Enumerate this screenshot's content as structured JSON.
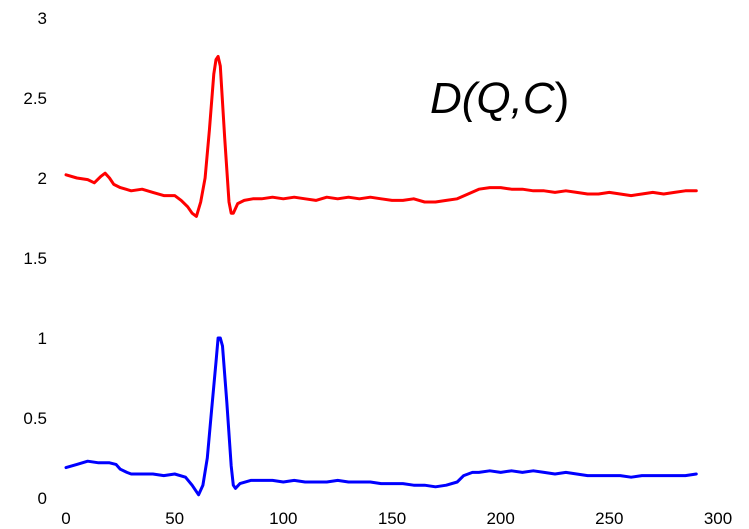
{
  "chart_data": {
    "type": "line",
    "title": "",
    "xlabel": "",
    "ylabel": "",
    "xlim": [
      0,
      300
    ],
    "ylim": [
      0,
      3
    ],
    "x_ticks": [
      "0",
      "50",
      "100",
      "150",
      "200",
      "250",
      "300"
    ],
    "y_ticks": [
      "0",
      "0.5",
      "1",
      "1.5",
      "2",
      "2.5",
      "3"
    ],
    "grid": false,
    "annotation": {
      "text": "D(Q,C)",
      "part1": "D(Q,",
      "part2": "C",
      "part3": ")"
    },
    "series": [
      {
        "color": "#ff0000",
        "points": [
          [
            0,
            2.02
          ],
          [
            5,
            2.0
          ],
          [
            10,
            1.99
          ],
          [
            13,
            1.97
          ],
          [
            16,
            2.01
          ],
          [
            18,
            2.03
          ],
          [
            20,
            2.0
          ],
          [
            22,
            1.96
          ],
          [
            25,
            1.94
          ],
          [
            30,
            1.92
          ],
          [
            35,
            1.93
          ],
          [
            40,
            1.91
          ],
          [
            45,
            1.89
          ],
          [
            50,
            1.89
          ],
          [
            53,
            1.86
          ],
          [
            56,
            1.82
          ],
          [
            58,
            1.78
          ],
          [
            60,
            1.76
          ],
          [
            62,
            1.85
          ],
          [
            64,
            2.0
          ],
          [
            66,
            2.3
          ],
          [
            68,
            2.65
          ],
          [
            69,
            2.74
          ],
          [
            70,
            2.76
          ],
          [
            71,
            2.7
          ],
          [
            73,
            2.25
          ],
          [
            75,
            1.85
          ],
          [
            76,
            1.78
          ],
          [
            77,
            1.78
          ],
          [
            79,
            1.84
          ],
          [
            82,
            1.86
          ],
          [
            86,
            1.87
          ],
          [
            90,
            1.87
          ],
          [
            95,
            1.88
          ],
          [
            100,
            1.87
          ],
          [
            105,
            1.88
          ],
          [
            110,
            1.87
          ],
          [
            115,
            1.86
          ],
          [
            120,
            1.88
          ],
          [
            125,
            1.87
          ],
          [
            130,
            1.88
          ],
          [
            135,
            1.87
          ],
          [
            140,
            1.88
          ],
          [
            145,
            1.87
          ],
          [
            150,
            1.86
          ],
          [
            155,
            1.86
          ],
          [
            160,
            1.87
          ],
          [
            165,
            1.85
          ],
          [
            170,
            1.85
          ],
          [
            175,
            1.86
          ],
          [
            180,
            1.87
          ],
          [
            185,
            1.9
          ],
          [
            190,
            1.93
          ],
          [
            195,
            1.94
          ],
          [
            200,
            1.94
          ],
          [
            205,
            1.93
          ],
          [
            210,
            1.93
          ],
          [
            215,
            1.92
          ],
          [
            220,
            1.92
          ],
          [
            225,
            1.91
          ],
          [
            230,
            1.92
          ],
          [
            235,
            1.91
          ],
          [
            240,
            1.9
          ],
          [
            245,
            1.9
          ],
          [
            250,
            1.91
          ],
          [
            255,
            1.9
          ],
          [
            260,
            1.89
          ],
          [
            265,
            1.9
          ],
          [
            270,
            1.91
          ],
          [
            275,
            1.9
          ],
          [
            280,
            1.91
          ],
          [
            285,
            1.92
          ],
          [
            290,
            1.92
          ]
        ]
      },
      {
        "color": "#0000ff",
        "points": [
          [
            0,
            0.19
          ],
          [
            5,
            0.21
          ],
          [
            10,
            0.23
          ],
          [
            15,
            0.22
          ],
          [
            20,
            0.22
          ],
          [
            23,
            0.21
          ],
          [
            25,
            0.18
          ],
          [
            28,
            0.16
          ],
          [
            30,
            0.15
          ],
          [
            35,
            0.15
          ],
          [
            40,
            0.15
          ],
          [
            45,
            0.14
          ],
          [
            50,
            0.15
          ],
          [
            55,
            0.13
          ],
          [
            58,
            0.08
          ],
          [
            60,
            0.04
          ],
          [
            61,
            0.02
          ],
          [
            63,
            0.08
          ],
          [
            65,
            0.25
          ],
          [
            67,
            0.55
          ],
          [
            69,
            0.85
          ],
          [
            70,
            1.0
          ],
          [
            71,
            1.0
          ],
          [
            72,
            0.95
          ],
          [
            74,
            0.6
          ],
          [
            76,
            0.2
          ],
          [
            77,
            0.08
          ],
          [
            78,
            0.06
          ],
          [
            80,
            0.09
          ],
          [
            85,
            0.11
          ],
          [
            90,
            0.11
          ],
          [
            95,
            0.11
          ],
          [
            100,
            0.1
          ],
          [
            105,
            0.11
          ],
          [
            110,
            0.1
          ],
          [
            115,
            0.1
          ],
          [
            120,
            0.1
          ],
          [
            125,
            0.11
          ],
          [
            130,
            0.1
          ],
          [
            135,
            0.1
          ],
          [
            140,
            0.1
          ],
          [
            145,
            0.09
          ],
          [
            150,
            0.09
          ],
          [
            155,
            0.09
          ],
          [
            160,
            0.08
          ],
          [
            165,
            0.08
          ],
          [
            170,
            0.07
          ],
          [
            175,
            0.08
          ],
          [
            180,
            0.1
          ],
          [
            183,
            0.14
          ],
          [
            187,
            0.16
          ],
          [
            190,
            0.16
          ],
          [
            195,
            0.17
          ],
          [
            200,
            0.16
          ],
          [
            205,
            0.17
          ],
          [
            210,
            0.16
          ],
          [
            215,
            0.17
          ],
          [
            220,
            0.16
          ],
          [
            225,
            0.15
          ],
          [
            230,
            0.16
          ],
          [
            235,
            0.15
          ],
          [
            240,
            0.14
          ],
          [
            245,
            0.14
          ],
          [
            250,
            0.14
          ],
          [
            255,
            0.14
          ],
          [
            260,
            0.13
          ],
          [
            265,
            0.14
          ],
          [
            270,
            0.14
          ],
          [
            275,
            0.14
          ],
          [
            280,
            0.14
          ],
          [
            285,
            0.14
          ],
          [
            290,
            0.15
          ]
        ]
      }
    ]
  }
}
